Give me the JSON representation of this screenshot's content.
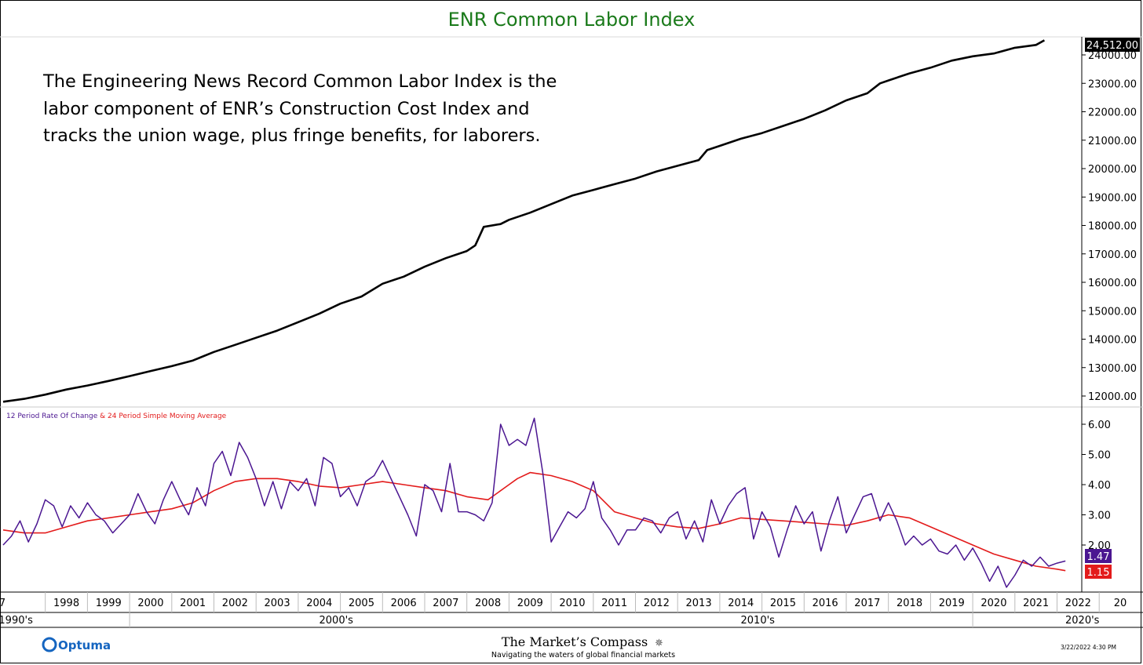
{
  "header": {
    "title": "ENR Common Labor Index"
  },
  "description": {
    "lines": [
      "The Engineering News Record Common Labor Index is the",
      "labor component of ENR’s Construction Cost Index and",
      "tracks the union wage, plus fringe benefits, for laborers."
    ]
  },
  "colors": {
    "title": "#1a7a1a",
    "price": "#000000",
    "roc": "#4b1691",
    "sma": "#e31b1b"
  },
  "chart_data": [
    {
      "type": "line",
      "title": "ENR Common Labor Index",
      "series": [
        {
          "name": "ENR Common Labor Index",
          "points": [
            [
              1997.0,
              11800
            ],
            [
              1997.5,
              11900
            ],
            [
              1998.0,
              12050
            ],
            [
              1998.5,
              12230
            ],
            [
              1999.0,
              12370
            ],
            [
              1999.5,
              12530
            ],
            [
              2000.0,
              12700
            ],
            [
              2000.5,
              12880
            ],
            [
              2001.0,
              13050
            ],
            [
              2001.5,
              13250
            ],
            [
              2002.0,
              13550
            ],
            [
              2002.5,
              13800
            ],
            [
              2003.0,
              14050
            ],
            [
              2003.5,
              14300
            ],
            [
              2004.0,
              14600
            ],
            [
              2004.5,
              14900
            ],
            [
              2005.0,
              15250
            ],
            [
              2005.5,
              15500
            ],
            [
              2006.0,
              15950
            ],
            [
              2006.5,
              16200
            ],
            [
              2007.0,
              16550
            ],
            [
              2007.5,
              16850
            ],
            [
              2008.0,
              17100
            ],
            [
              2008.2,
              17300
            ],
            [
              2008.4,
              17950
            ],
            [
              2008.8,
              18050
            ],
            [
              2009.0,
              18200
            ],
            [
              2009.5,
              18450
            ],
            [
              2010.0,
              18750
            ],
            [
              2010.5,
              19050
            ],
            [
              2011.0,
              19250
            ],
            [
              2011.5,
              19450
            ],
            [
              2012.0,
              19650
            ],
            [
              2012.5,
              19900
            ],
            [
              2013.0,
              20100
            ],
            [
              2013.5,
              20300
            ],
            [
              2013.7,
              20650
            ],
            [
              2014.0,
              20800
            ],
            [
              2014.5,
              21050
            ],
            [
              2015.0,
              21250
            ],
            [
              2015.5,
              21500
            ],
            [
              2016.0,
              21750
            ],
            [
              2016.5,
              22050
            ],
            [
              2017.0,
              22400
            ],
            [
              2017.5,
              22650
            ],
            [
              2017.8,
              23000
            ],
            [
              2018.0,
              23100
            ],
            [
              2018.5,
              23350
            ],
            [
              2019.0,
              23550
            ],
            [
              2019.5,
              23800
            ],
            [
              2020.0,
              23950
            ],
            [
              2020.5,
              24050
            ],
            [
              2021.0,
              24250
            ],
            [
              2021.5,
              24350
            ],
            [
              2021.7,
              24512
            ]
          ]
        }
      ],
      "yticks": [
        "12000.00",
        "13000.00",
        "14000.00",
        "15000.00",
        "16000.00",
        "17000.00",
        "18000.00",
        "19000.00",
        "20000.00",
        "21000.00",
        "22000.00",
        "23000.00",
        "24000.00"
      ],
      "ylim": [
        11800,
        24600
      ],
      "last_value_label": "24,512.00"
    },
    {
      "type": "line",
      "title": "12 Period Rate Of Change & 24 Period Simple Moving Average",
      "title_parts": [
        "12 Period Rate Of Change",
        " & 24 Period Simple Moving Average"
      ],
      "series": [
        {
          "name": "12 Period Rate Of Change",
          "points": [
            [
              1997.0,
              2.0
            ],
            [
              1997.2,
              2.3
            ],
            [
              1997.4,
              2.8
            ],
            [
              1997.6,
              2.1
            ],
            [
              1997.8,
              2.7
            ],
            [
              1998.0,
              3.5
            ],
            [
              1998.2,
              3.3
            ],
            [
              1998.4,
              2.6
            ],
            [
              1998.6,
              3.3
            ],
            [
              1998.8,
              2.9
            ],
            [
              1999.0,
              3.4
            ],
            [
              1999.2,
              3.0
            ],
            [
              1999.4,
              2.8
            ],
            [
              1999.6,
              2.4
            ],
            [
              1999.8,
              2.7
            ],
            [
              2000.0,
              3.0
            ],
            [
              2000.2,
              3.7
            ],
            [
              2000.4,
              3.1
            ],
            [
              2000.6,
              2.7
            ],
            [
              2000.8,
              3.5
            ],
            [
              2001.0,
              4.1
            ],
            [
              2001.2,
              3.5
            ],
            [
              2001.4,
              3.0
            ],
            [
              2001.6,
              3.9
            ],
            [
              2001.8,
              3.3
            ],
            [
              2002.0,
              4.7
            ],
            [
              2002.2,
              5.1
            ],
            [
              2002.4,
              4.3
            ],
            [
              2002.6,
              5.4
            ],
            [
              2002.8,
              4.9
            ],
            [
              2003.0,
              4.2
            ],
            [
              2003.2,
              3.3
            ],
            [
              2003.4,
              4.1
            ],
            [
              2003.6,
              3.2
            ],
            [
              2003.8,
              4.1
            ],
            [
              2004.0,
              3.8
            ],
            [
              2004.2,
              4.2
            ],
            [
              2004.4,
              3.3
            ],
            [
              2004.6,
              4.9
            ],
            [
              2004.8,
              4.7
            ],
            [
              2005.0,
              3.6
            ],
            [
              2005.2,
              3.9
            ],
            [
              2005.4,
              3.3
            ],
            [
              2005.6,
              4.1
            ],
            [
              2005.8,
              4.3
            ],
            [
              2006.0,
              4.8
            ],
            [
              2006.2,
              4.2
            ],
            [
              2006.4,
              3.6
            ],
            [
              2006.6,
              3.0
            ],
            [
              2006.8,
              2.3
            ],
            [
              2007.0,
              4.0
            ],
            [
              2007.2,
              3.8
            ],
            [
              2007.4,
              3.1
            ],
            [
              2007.6,
              4.7
            ],
            [
              2007.8,
              3.1
            ],
            [
              2008.0,
              3.1
            ],
            [
              2008.2,
              3.0
            ],
            [
              2008.4,
              2.8
            ],
            [
              2008.6,
              3.4
            ],
            [
              2008.8,
              6.0
            ],
            [
              2009.0,
              5.3
            ],
            [
              2009.2,
              5.5
            ],
            [
              2009.4,
              5.3
            ],
            [
              2009.6,
              6.2
            ],
            [
              2009.8,
              4.4
            ],
            [
              2010.0,
              2.1
            ],
            [
              2010.2,
              2.6
            ],
            [
              2010.4,
              3.1
            ],
            [
              2010.6,
              2.9
            ],
            [
              2010.8,
              3.2
            ],
            [
              2011.0,
              4.1
            ],
            [
              2011.2,
              2.9
            ],
            [
              2011.4,
              2.5
            ],
            [
              2011.6,
              2.0
            ],
            [
              2011.8,
              2.5
            ],
            [
              2012.0,
              2.5
            ],
            [
              2012.2,
              2.9
            ],
            [
              2012.4,
              2.8
            ],
            [
              2012.6,
              2.4
            ],
            [
              2012.8,
              2.9
            ],
            [
              2013.0,
              3.1
            ],
            [
              2013.2,
              2.2
            ],
            [
              2013.4,
              2.8
            ],
            [
              2013.6,
              2.1
            ],
            [
              2013.8,
              3.5
            ],
            [
              2014.0,
              2.7
            ],
            [
              2014.2,
              3.3
            ],
            [
              2014.4,
              3.7
            ],
            [
              2014.6,
              3.9
            ],
            [
              2014.8,
              2.2
            ],
            [
              2015.0,
              3.1
            ],
            [
              2015.2,
              2.6
            ],
            [
              2015.4,
              1.6
            ],
            [
              2015.6,
              2.5
            ],
            [
              2015.8,
              3.3
            ],
            [
              2016.0,
              2.7
            ],
            [
              2016.2,
              3.1
            ],
            [
              2016.4,
              1.8
            ],
            [
              2016.6,
              2.8
            ],
            [
              2016.8,
              3.6
            ],
            [
              2017.0,
              2.4
            ],
            [
              2017.2,
              3.0
            ],
            [
              2017.4,
              3.6
            ],
            [
              2017.6,
              3.7
            ],
            [
              2017.8,
              2.8
            ],
            [
              2018.0,
              3.4
            ],
            [
              2018.2,
              2.8
            ],
            [
              2018.4,
              2.0
            ],
            [
              2018.6,
              2.3
            ],
            [
              2018.8,
              2.0
            ],
            [
              2019.0,
              2.2
            ],
            [
              2019.2,
              1.8
            ],
            [
              2019.4,
              1.7
            ],
            [
              2019.6,
              2.0
            ],
            [
              2019.8,
              1.5
            ],
            [
              2020.0,
              1.9
            ],
            [
              2020.2,
              1.4
            ],
            [
              2020.4,
              0.8
            ],
            [
              2020.6,
              1.3
            ],
            [
              2020.8,
              0.6
            ],
            [
              2021.0,
              1.0
            ],
            [
              2021.2,
              1.5
            ],
            [
              2021.4,
              1.3
            ],
            [
              2021.6,
              1.6
            ],
            [
              2021.8,
              1.3
            ],
            [
              2022.0,
              1.4
            ],
            [
              2022.2,
              1.47
            ]
          ]
        },
        {
          "name": "24 Period Simple Moving Average",
          "points": [
            [
              1997.0,
              2.5
            ],
            [
              1997.5,
              2.4
            ],
            [
              1998.0,
              2.4
            ],
            [
              1998.5,
              2.6
            ],
            [
              1999.0,
              2.8
            ],
            [
              1999.5,
              2.9
            ],
            [
              2000.0,
              3.0
            ],
            [
              2000.5,
              3.1
            ],
            [
              2001.0,
              3.2
            ],
            [
              2001.5,
              3.4
            ],
            [
              2002.0,
              3.8
            ],
            [
              2002.5,
              4.1
            ],
            [
              2003.0,
              4.2
            ],
            [
              2003.5,
              4.2
            ],
            [
              2004.0,
              4.1
            ],
            [
              2004.5,
              3.95
            ],
            [
              2005.0,
              3.9
            ],
            [
              2005.5,
              4.0
            ],
            [
              2006.0,
              4.1
            ],
            [
              2006.5,
              4.0
            ],
            [
              2007.0,
              3.9
            ],
            [
              2007.5,
              3.8
            ],
            [
              2008.0,
              3.6
            ],
            [
              2008.5,
              3.5
            ],
            [
              2009.0,
              4.0
            ],
            [
              2009.2,
              4.2
            ],
            [
              2009.5,
              4.4
            ],
            [
              2010.0,
              4.3
            ],
            [
              2010.5,
              4.1
            ],
            [
              2011.0,
              3.8
            ],
            [
              2011.5,
              3.1
            ],
            [
              2012.0,
              2.9
            ],
            [
              2012.5,
              2.7
            ],
            [
              2013.0,
              2.6
            ],
            [
              2013.5,
              2.55
            ],
            [
              2014.0,
              2.7
            ],
            [
              2014.5,
              2.9
            ],
            [
              2015.0,
              2.85
            ],
            [
              2015.5,
              2.8
            ],
            [
              2016.0,
              2.75
            ],
            [
              2016.5,
              2.7
            ],
            [
              2017.0,
              2.65
            ],
            [
              2017.5,
              2.8
            ],
            [
              2018.0,
              3.0
            ],
            [
              2018.5,
              2.9
            ],
            [
              2019.0,
              2.6
            ],
            [
              2019.5,
              2.3
            ],
            [
              2020.0,
              2.0
            ],
            [
              2020.5,
              1.7
            ],
            [
              2021.0,
              1.5
            ],
            [
              2021.5,
              1.3
            ],
            [
              2022.0,
              1.2
            ],
            [
              2022.2,
              1.15
            ]
          ]
        }
      ],
      "yticks": [
        "2.00",
        "3.00",
        "4.00",
        "5.00",
        "6.00"
      ],
      "ylim": [
        0.5,
        6.5
      ],
      "last_value_labels": [
        "1.47",
        "1.15"
      ]
    }
  ],
  "x_axis": {
    "year_labels": [
      "7",
      "1998",
      "1999",
      "2000",
      "2001",
      "2002",
      "2003",
      "2004",
      "2005",
      "2006",
      "2007",
      "2008",
      "2009",
      "2010",
      "2011",
      "2012",
      "2013",
      "2014",
      "2015",
      "2016",
      "2017",
      "2018",
      "2019",
      "2020",
      "2021",
      "2022",
      "20"
    ],
    "decades": [
      {
        "label": "1990's",
        "at": 1997.3
      },
      {
        "label": "2000's",
        "at": 2004.9
      },
      {
        "label": "2010's",
        "at": 2014.9
      },
      {
        "label": "2020's",
        "at": 2022.6
      }
    ]
  },
  "footer": {
    "optuma": "Optuma",
    "brand_name": "The Market’s Compass",
    "brand_symbol": "✵",
    "tagline": "Navigating the waters of global financial markets",
    "timestamp": "3/22/2022 4:30 PM"
  }
}
